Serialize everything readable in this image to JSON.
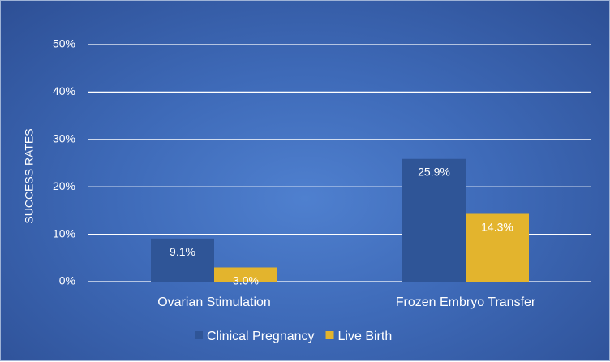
{
  "chart_data": {
    "type": "bar",
    "categories": [
      "Ovarian Stimulation",
      "Frozen Embryo Transfer"
    ],
    "series": [
      {
        "name": "Clinical Pregnancy",
        "values": [
          9.1,
          25.9
        ],
        "labels": [
          "9.1%",
          "25.9%"
        ],
        "color": "#2f5597"
      },
      {
        "name": "Live Birth",
        "values": [
          3.0,
          14.3
        ],
        "labels": [
          "3.0%",
          "14.3%"
        ],
        "color": "#e3b42d"
      }
    ],
    "ylabel": "SUCCESS RATES",
    "ylim": [
      0,
      50
    ],
    "yticks": [
      0,
      10,
      20,
      30,
      40,
      50
    ],
    "ytick_labels": [
      "0%",
      "10%",
      "20%",
      "30%",
      "40%",
      "50%"
    ],
    "grid": true,
    "legend_position": "bottom"
  }
}
